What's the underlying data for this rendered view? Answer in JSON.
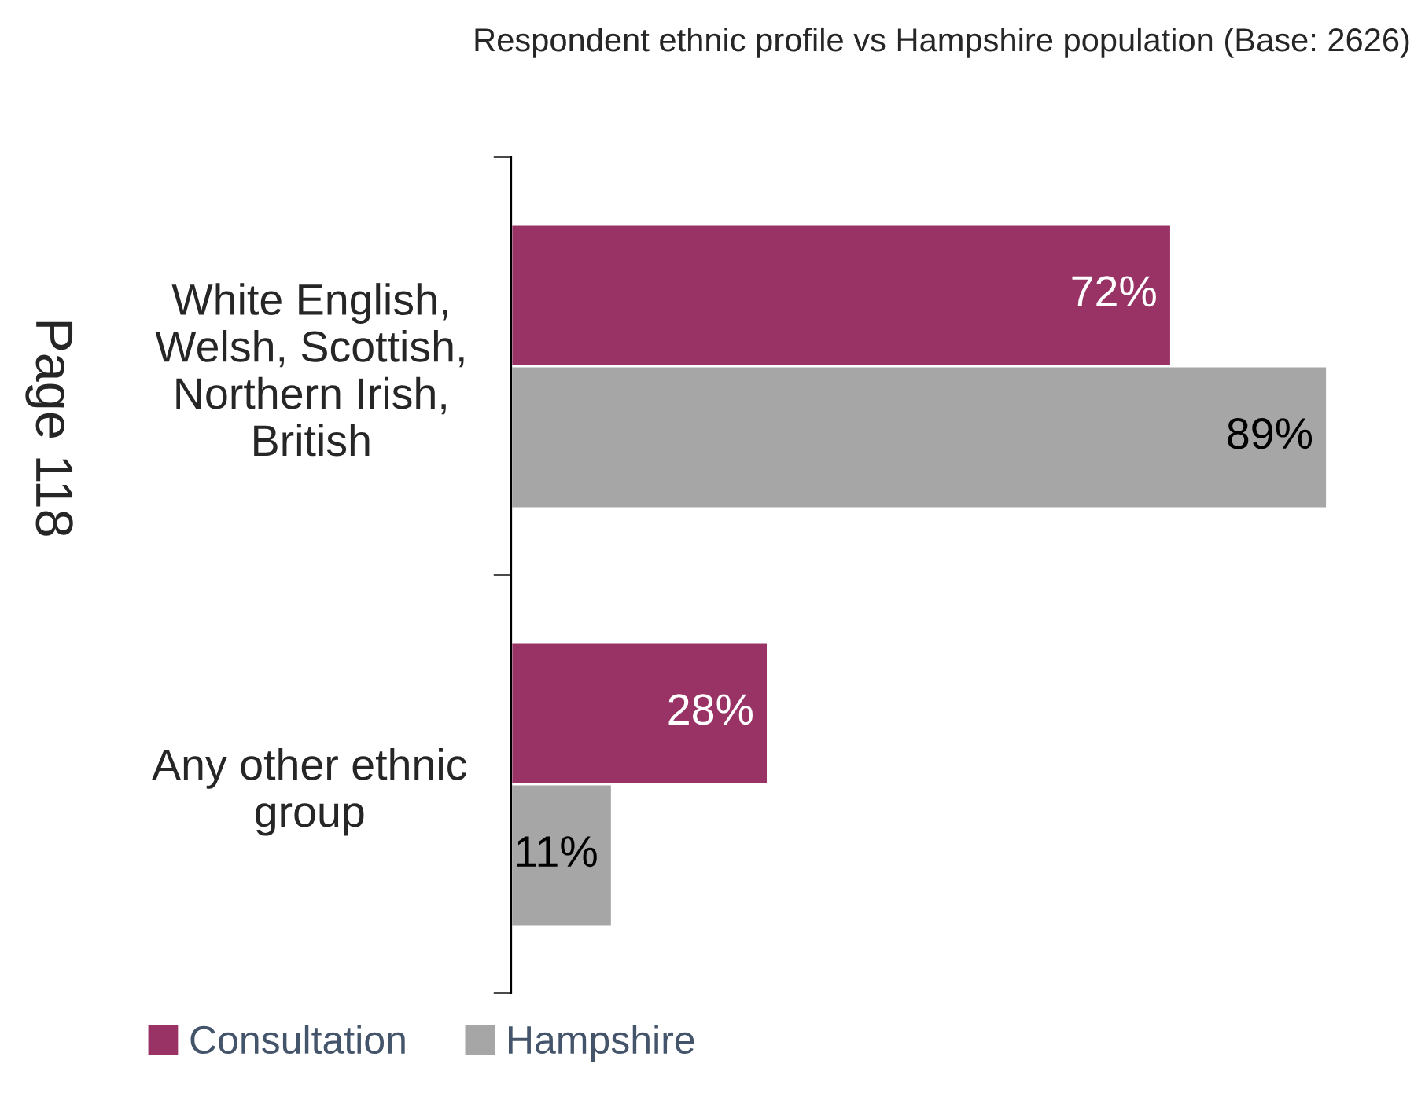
{
  "chart_data": {
    "type": "bar",
    "orientation": "horizontal",
    "title": "Respondent ethnic profile vs Hampshire population (Base: 2626)",
    "categories": [
      "White English,\nWelsh, Scottish,\nNorthern Irish,\nBritish",
      "Any other ethnic\ngroup"
    ],
    "series": [
      {
        "name": "Consultation",
        "color": "#993366",
        "values": [
          72,
          28
        ],
        "value_labels": [
          "72%",
          "28%"
        ]
      },
      {
        "name": "Hampshire",
        "color": "#a6a6a6",
        "values": [
          89,
          11
        ],
        "value_labels": [
          "89%",
          "11%"
        ]
      }
    ],
    "tick_labels": "y",
    "legend": "bottom left",
    "annotations": [
      "Page 118"
    ]
  }
}
